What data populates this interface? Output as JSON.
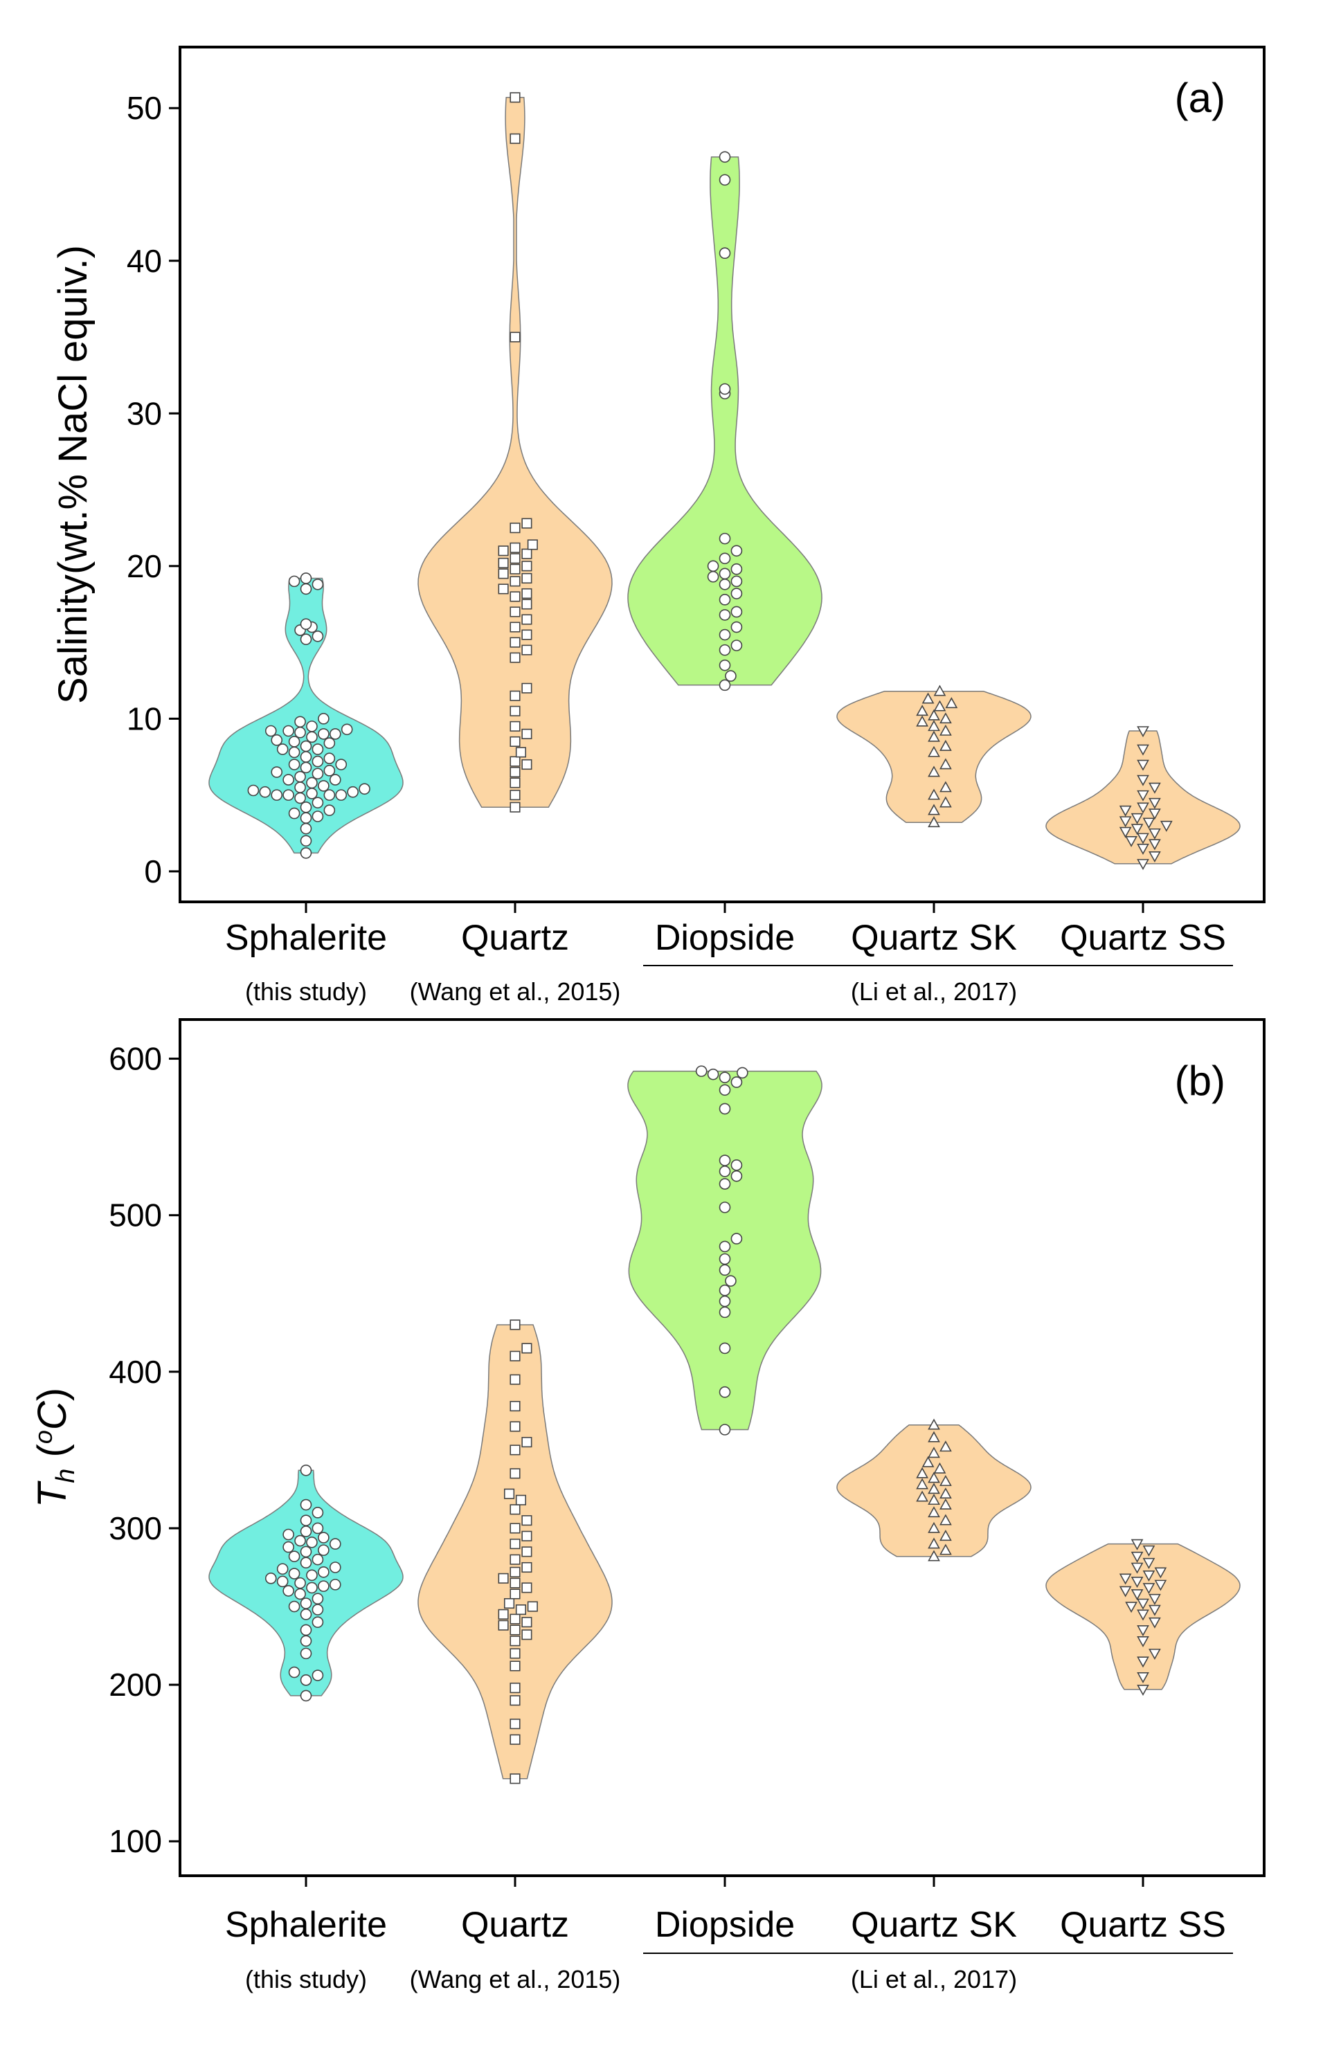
{
  "chart_data": [
    {
      "type": "violin",
      "panel_label": "(a)",
      "ylabel": "Salinity(wt.% NaCl equiv.)",
      "ylim": [
        -2,
        54
      ],
      "yticks": [
        0,
        10,
        20,
        30,
        40,
        50
      ],
      "categories": [
        "Sphalerite",
        "Quartz",
        "Diopside",
        "Quartz SK",
        "Quartz SS"
      ],
      "sources": [
        {
          "label": "(this study)",
          "categories": [
            "Sphalerite"
          ],
          "underline": false
        },
        {
          "label": "(Wang et al., 2015)",
          "categories": [
            "Quartz"
          ],
          "underline": false
        },
        {
          "label": "(Li et al., 2017)",
          "categories": [
            "Diopside",
            "Quartz SK",
            "Quartz SS"
          ],
          "underline": true
        }
      ],
      "series": [
        {
          "category": "Sphalerite",
          "color": "#72eee0",
          "marker": "circle",
          "values": [
            1.2,
            2.0,
            2.8,
            3.5,
            3.6,
            3.8,
            4.0,
            4.2,
            4.5,
            4.8,
            5.0,
            5.0,
            5.0,
            5.0,
            5.1,
            5.2,
            5.2,
            5.3,
            5.4,
            5.5,
            5.6,
            5.8,
            6.0,
            6.0,
            6.2,
            6.4,
            6.5,
            6.6,
            6.8,
            7.0,
            7.0,
            7.2,
            7.4,
            7.5,
            7.8,
            8.0,
            8.0,
            8.2,
            8.4,
            8.5,
            8.6,
            8.8,
            9.0,
            9.0,
            9.1,
            9.2,
            9.2,
            9.3,
            9.5,
            9.8,
            10.0,
            15.2,
            15.4,
            15.8,
            16.0,
            16.2,
            18.5,
            18.8,
            19.0,
            19.2
          ]
        },
        {
          "category": "Quartz",
          "color": "#fcd6a4",
          "marker": "square",
          "values": [
            4.2,
            5.0,
            5.8,
            6.5,
            7.0,
            7.2,
            7.8,
            8.5,
            9.0,
            9.5,
            10.5,
            11.5,
            12.0,
            14.0,
            14.5,
            15.0,
            15.5,
            16.0,
            16.5,
            17.0,
            17.5,
            18.0,
            18.2,
            18.5,
            19.0,
            19.2,
            19.5,
            19.8,
            20.0,
            20.2,
            20.5,
            20.8,
            21.0,
            21.2,
            21.4,
            22.5,
            22.8,
            35.0,
            48.0,
            50.7
          ]
        },
        {
          "category": "Diopside",
          "color": "#b8f887",
          "marker": "circle",
          "values": [
            12.2,
            12.8,
            13.5,
            14.5,
            14.8,
            15.5,
            16.0,
            16.8,
            17.0,
            17.8,
            18.2,
            18.8,
            19.0,
            19.3,
            19.5,
            19.8,
            20.0,
            20.5,
            21.0,
            21.8,
            31.3,
            31.6,
            40.5,
            45.3,
            46.8
          ]
        },
        {
          "category": "Quartz SK",
          "color": "#fcd6a4",
          "marker": "triangle-up",
          "values": [
            3.2,
            4.0,
            4.5,
            5.0,
            5.5,
            6.5,
            7.0,
            7.8,
            8.2,
            8.8,
            9.2,
            9.5,
            9.8,
            10.0,
            10.2,
            10.5,
            10.8,
            11.0,
            11.3,
            11.8
          ]
        },
        {
          "category": "Quartz SS",
          "color": "#fcd6a4",
          "marker": "triangle-down",
          "values": [
            0.5,
            1.0,
            1.5,
            1.8,
            2.0,
            2.2,
            2.5,
            2.6,
            2.8,
            3.0,
            3.2,
            3.3,
            3.5,
            3.8,
            4.0,
            4.2,
            4.5,
            5.0,
            5.5,
            6.0,
            7.0,
            8.0,
            9.2
          ]
        }
      ]
    },
    {
      "type": "violin",
      "panel_label": "(b)",
      "ylabel": "T_h (oC)",
      "ylabel_parts": {
        "main": "T",
        "sub": "h",
        "open": " (",
        "sup": "o",
        "unit": "C",
        "close": ")"
      },
      "ylim": [
        78,
        625
      ],
      "yticks": [
        100,
        200,
        300,
        400,
        500,
        600
      ],
      "categories": [
        "Sphalerite",
        "Quartz",
        "Diopside",
        "Quartz SK",
        "Quartz SS"
      ],
      "sources": [
        {
          "label": "(this study)",
          "categories": [
            "Sphalerite"
          ],
          "underline": false
        },
        {
          "label": "(Wang et al., 2015)",
          "categories": [
            "Quartz"
          ],
          "underline": false
        },
        {
          "label": "(Li et al., 2017)",
          "categories": [
            "Diopside",
            "Quartz SK",
            "Quartz SS"
          ],
          "underline": true
        }
      ],
      "series": [
        {
          "category": "Sphalerite",
          "color": "#72eee0",
          "marker": "circle",
          "values": [
            193,
            203,
            206,
            208,
            220,
            228,
            235,
            240,
            245,
            248,
            250,
            252,
            255,
            258,
            260,
            262,
            263,
            264,
            265,
            266,
            268,
            270,
            271,
            272,
            274,
            275,
            278,
            280,
            282,
            285,
            286,
            288,
            290,
            291,
            292,
            294,
            296,
            298,
            300,
            305,
            310,
            315,
            337
          ]
        },
        {
          "category": "Quartz",
          "color": "#fcd6a4",
          "marker": "square",
          "values": [
            140,
            165,
            175,
            190,
            198,
            212,
            220,
            228,
            232,
            235,
            238,
            240,
            242,
            245,
            248,
            250,
            252,
            258,
            262,
            265,
            268,
            272,
            275,
            280,
            285,
            290,
            295,
            300,
            305,
            312,
            318,
            322,
            335,
            350,
            355,
            365,
            378,
            395,
            410,
            415,
            430
          ]
        },
        {
          "category": "Diopside",
          "color": "#b8f887",
          "marker": "circle",
          "values": [
            363,
            387,
            415,
            438,
            445,
            452,
            458,
            465,
            472,
            480,
            485,
            505,
            520,
            525,
            528,
            532,
            535,
            568,
            580,
            585,
            588,
            590,
            591,
            592
          ]
        },
        {
          "category": "Quartz SK",
          "color": "#fcd6a4",
          "marker": "triangle-up",
          "values": [
            282,
            286,
            290,
            295,
            300,
            305,
            310,
            315,
            318,
            320,
            322,
            325,
            328,
            330,
            332,
            335,
            338,
            342,
            348,
            352,
            358,
            366
          ]
        },
        {
          "category": "Quartz SS",
          "color": "#fcd6a4",
          "marker": "triangle-down",
          "values": [
            197,
            205,
            215,
            220,
            228,
            235,
            240,
            245,
            248,
            250,
            252,
            255,
            258,
            260,
            262,
            264,
            266,
            268,
            270,
            272,
            275,
            278,
            282,
            286,
            290
          ]
        }
      ]
    }
  ]
}
